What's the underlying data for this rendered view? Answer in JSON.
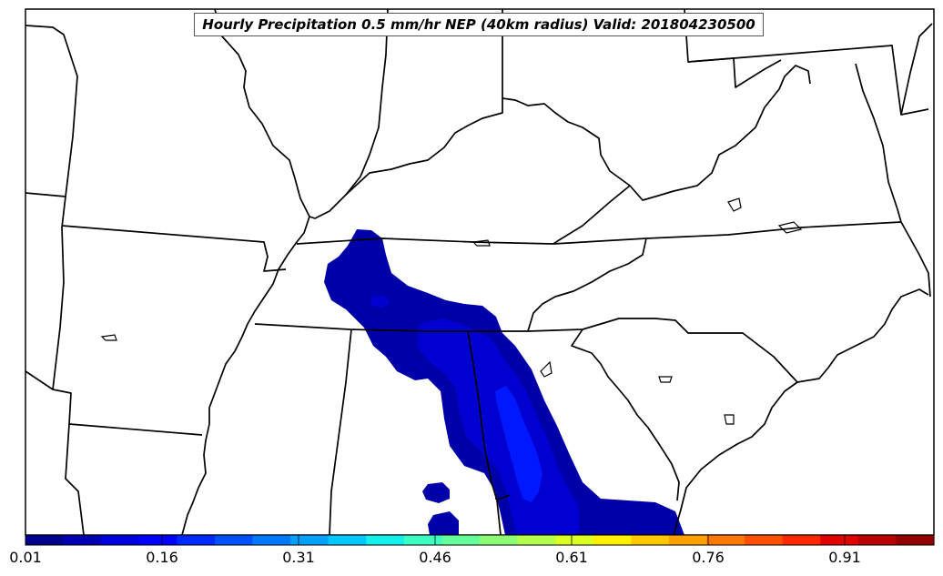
{
  "title": "Hourly Precipitation 0.5 mm/hr NEP (40km radius) Valid: 201804230500",
  "colorbar": {
    "ticks": [
      "0.01",
      "0.16",
      "0.31",
      "0.46",
      "0.61",
      "0.76",
      "0.91"
    ],
    "colors": [
      "#00008f",
      "#0000b3",
      "#0000df",
      "#0000ff",
      "#0028ff",
      "#0050ff",
      "#0078ff",
      "#00a0ff",
      "#00c8ff",
      "#14f0ea",
      "#3cffc2",
      "#64ff9a",
      "#8cff72",
      "#b4ff4a",
      "#dcff22",
      "#fff000",
      "#ffc800",
      "#ffa000",
      "#ff7800",
      "#ff5000",
      "#ff2800",
      "#e00000",
      "#b80000",
      "#900000"
    ]
  },
  "field_colors": {
    "level1": "#0000a8",
    "level2": "#0000d0",
    "level3": "#0018ff"
  }
}
